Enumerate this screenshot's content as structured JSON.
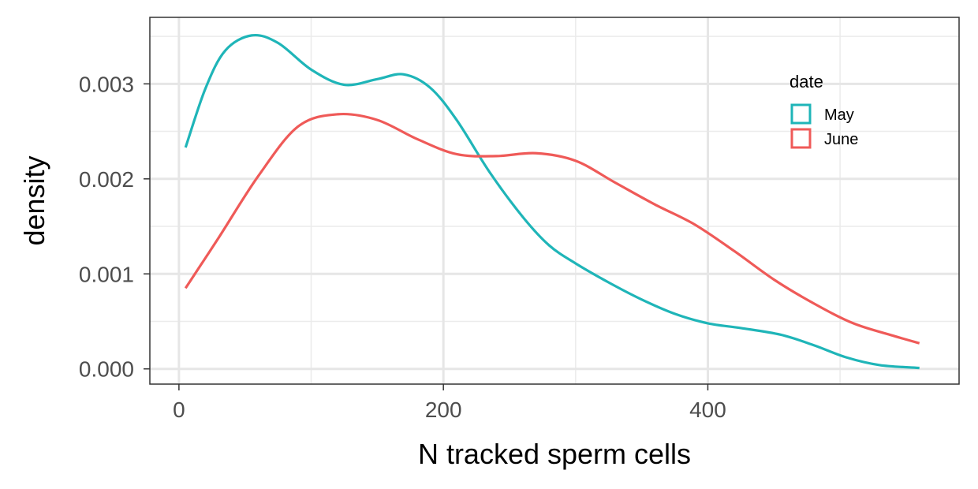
{
  "chart_data": {
    "type": "line",
    "title": "",
    "xlabel": "N tracked sperm cells",
    "ylabel": "density",
    "xlim": [
      -22,
      590
    ],
    "ylim": [
      -0.00016,
      0.0037
    ],
    "x_ticks": [
      0,
      200,
      400
    ],
    "x_tick_labels": [
      "0",
      "200",
      "400"
    ],
    "x_minor_ticks": [
      100,
      300,
      500
    ],
    "y_ticks": [
      0,
      0.001,
      0.002,
      0.003
    ],
    "y_tick_labels": [
      "0.000",
      "0.001",
      "0.002",
      "0.003"
    ],
    "y_minor_ticks": [
      0.0005,
      0.0015,
      0.0025,
      0.0035
    ],
    "grid": true,
    "legend": {
      "title": "date",
      "position": "top-right (inside)"
    },
    "series": [
      {
        "name": "May",
        "color": "#1fb5b8",
        "x": [
          5,
          20,
          35,
          55,
          75,
          100,
          125,
          150,
          170,
          190,
          210,
          235,
          260,
          280,
          300,
          325,
          350,
          375,
          400,
          425,
          455,
          480,
          505,
          530,
          560
        ],
        "y": [
          0.00233,
          0.00295,
          0.00335,
          0.00351,
          0.00343,
          0.00315,
          0.00299,
          0.00305,
          0.0031,
          0.00296,
          0.00262,
          0.00207,
          0.0016,
          0.0013,
          0.00111,
          0.00091,
          0.00073,
          0.00058,
          0.00048,
          0.00043,
          0.00036,
          0.00025,
          0.00012,
          4e-05,
          1e-05
        ]
      },
      {
        "name": "June",
        "color": "#ef5a58",
        "x": [
          5,
          30,
          60,
          90,
          120,
          150,
          180,
          210,
          240,
          270,
          300,
          330,
          360,
          390,
          420,
          450,
          480,
          510,
          540,
          560
        ],
        "y": [
          0.00085,
          0.00138,
          0.00203,
          0.00255,
          0.00268,
          0.00262,
          0.00242,
          0.00226,
          0.00224,
          0.00227,
          0.00219,
          0.00196,
          0.00173,
          0.00152,
          0.00124,
          0.00094,
          0.00069,
          0.00048,
          0.00035,
          0.00027
        ]
      }
    ]
  }
}
